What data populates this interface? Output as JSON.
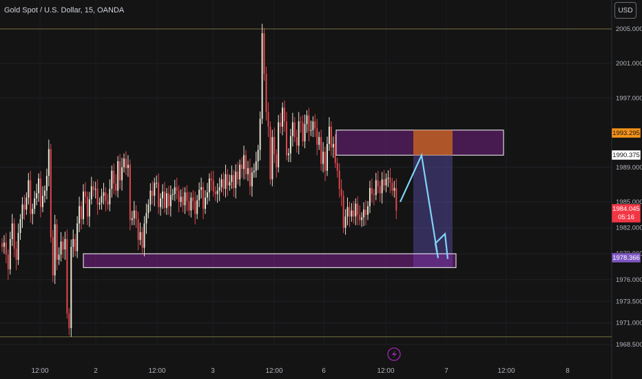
{
  "header": {
    "title": "Gold Spot / U.S. Dollar, 15, OANDA",
    "currency": "USD"
  },
  "chart_data": {
    "type": "candlestick",
    "instrument": "Gold Spot / U.S. Dollar",
    "timeframe": "15",
    "source": "OANDA",
    "ylim": [
      1968.5,
      2005.0
    ],
    "y_ticks": [
      "2005.000",
      "2001.000",
      "1997.000",
      "1989.000",
      "1985.000",
      "1982.000",
      "1979.000",
      "1976.000",
      "1973.500",
      "1971.000",
      "1968.500"
    ],
    "x_ticks": [
      "12:00",
      "2",
      "12:00",
      "3",
      "12:00",
      "6",
      "12:00",
      "7",
      "12:00",
      "8"
    ],
    "price_labels": [
      {
        "value": "1993.295",
        "color": "#f7931a",
        "text_color": "#141414"
      },
      {
        "value": "1990.375",
        "color": "#ffffff",
        "text_color": "#141414"
      },
      {
        "value": "1984.045",
        "sub": "05:16",
        "color": "#f23645",
        "text_color": "#ffffff"
      },
      {
        "value": "1978.366",
        "color": "#7e57c2",
        "text_color": "#ffffff"
      }
    ],
    "reference_lines": [
      2005.0,
      1969.4
    ],
    "zones": [
      {
        "name": "supply-zone",
        "from": 1993.3,
        "to": 1990.4,
        "color": "#9c27b0"
      },
      {
        "name": "demand-zone",
        "from": 1979.0,
        "to": 1977.4,
        "color": "#9c27b0"
      }
    ],
    "projection": {
      "direction": "up-then-down",
      "peak": 1990.4,
      "target": 1978.4,
      "color": "#81d4fa"
    },
    "series": [
      {
        "values": [
          1979.8,
          1980.3,
          1978.9,
          1977.2,
          1980.7,
          1982.5,
          1979.6,
          1978.3,
          1981.4,
          1983.0,
          1984.7,
          1984.1,
          1985.5,
          1987.5,
          1983.6,
          1984.2,
          1985.4,
          1986.0,
          1987.7,
          1984.4,
          1985.7,
          1986.3,
          1988.0,
          1991.1,
          1980.9,
          1976.5,
          1982.4,
          1978.3,
          1978.9,
          1980.4,
          1979.5,
          1980.7,
          1972.1,
          1970.4,
          1979.8,
          1980.7,
          1979.3,
          1982.5,
          1984.5,
          1983.0,
          1986.2,
          1985.6,
          1983.3,
          1985.3,
          1986.8,
          1986.4,
          1986.5,
          1984.7,
          1984.9,
          1985.7,
          1986.1,
          1985.1,
          1984.7,
          1986.5,
          1988.6,
          1987.1,
          1986.3,
          1989.7,
          1987.5,
          1989.0,
          1990.0,
          1988.9,
          1989.3,
          1982.9,
          1983.1,
          1984.0,
          1983.0,
          1980.6,
          1981.5,
          1979.7,
          1982.5,
          1983.7,
          1984.7,
          1986.3,
          1985.7,
          1987.2,
          1987.2,
          1984.4,
          1985.4,
          1986.2,
          1984.3,
          1986.0,
          1984.5,
          1985.8,
          1985.9,
          1986.7,
          1986.3,
          1985.0,
          1985.6,
          1984.6,
          1986.1,
          1985.1,
          1984.0,
          1985.5,
          1985.1,
          1983.6,
          1985.2,
          1986.4,
          1986.7,
          1984.2,
          1985.5,
          1986.1,
          1987.7,
          1987.5,
          1986.2,
          1985.9,
          1986.3,
          1986.7,
          1987.6,
          1986.5,
          1988.2,
          1986.9,
          1987.3,
          1988.1,
          1986.6,
          1988.5,
          1987.6,
          1989.3,
          1988.8,
          1990.4,
          1988.2,
          1988.9,
          1986.8,
          1988.4,
          1988.6,
          1989.7,
          1991.0,
          1994.6,
          2004.5,
          1999.8,
          1995.4,
          1993.7,
          1987.6,
          1992.5,
          1990.5,
          1989.0,
          1994.2,
          1993.7,
          1995.9,
          1994.3,
          1990.4,
          1990.6,
          1992.6,
          1994.2,
          1992.5,
          1991.5,
          1994.3,
          1994.2,
          1992.0,
          1994.0,
          1995.0,
          1993.2,
          1993.3,
          1994.3,
          1993.5,
          1991.6,
          1992.5,
          1989.4,
          1990.8,
          1988.6,
          1991.7,
          1993.7,
          1991.3,
          1991.7,
          1989.5,
          1988.6,
          1986.5,
          1985.7,
          1982.0,
          1983.3,
          1984.4,
          1983.3,
          1984.0,
          1983.3,
          1984.8,
          1983.5,
          1982.9,
          1983.2,
          1984.1,
          1983.5,
          1984.5,
          1986.6,
          1985.9,
          1985.8,
          1987.5,
          1986.8,
          1986.0,
          1987.6,
          1986.9,
          1987.7,
          1987.8,
          1987.2,
          1986.3,
          1986.6,
          1984.0
        ]
      }
    ]
  }
}
